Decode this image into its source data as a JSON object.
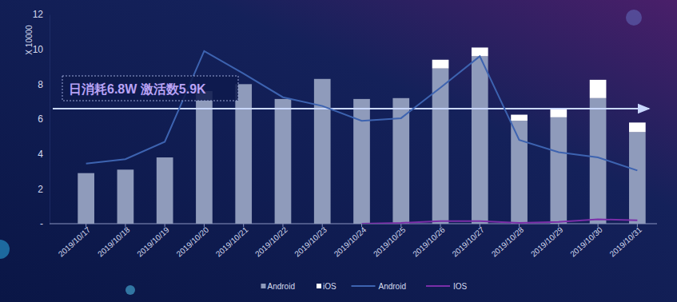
{
  "chart_data": {
    "type": "bar",
    "stacked": true,
    "y_label": "X 10000",
    "annotation": "日消耗6.8W  激活数5.9K",
    "reference_value": 6.6,
    "categories": [
      "2019/10/17",
      "2019/10/18",
      "2019/10/19",
      "2019/10/20",
      "2019/10/21",
      "2019/10/22",
      "2019/10/23",
      "2019/10/24",
      "2019/10/25",
      "2019/10/26",
      "2019/10/27",
      "2019/10/28",
      "2019/10/29",
      "2019/10/30",
      "2019/10/31"
    ],
    "series": [
      {
        "name": "Android",
        "type": "bar",
        "color": "#8f9bbb",
        "values": [
          2.9,
          3.1,
          3.8,
          7.6,
          8.0,
          7.15,
          8.3,
          7.15,
          7.2,
          8.9,
          9.6,
          5.9,
          6.1,
          7.2,
          5.25
        ]
      },
      {
        "name": "iOS",
        "type": "bar",
        "color": "#ffffff",
        "values": [
          0,
          0,
          0,
          0,
          0,
          0,
          0,
          0,
          0,
          0.5,
          0.5,
          0.35,
          0.45,
          1.05,
          0.55
        ]
      },
      {
        "name": "Android",
        "type": "line",
        "color": "#3d63b0",
        "values": [
          3.45,
          3.7,
          4.7,
          9.9,
          8.6,
          7.25,
          6.75,
          5.9,
          6.05,
          7.8,
          9.6,
          4.8,
          4.1,
          3.8,
          3.05
        ]
      },
      {
        "name": "IOS",
        "type": "line",
        "color": "#7a2ea8",
        "values": [
          null,
          null,
          null,
          null,
          null,
          null,
          null,
          0.0,
          0.05,
          0.15,
          0.15,
          0.05,
          0.1,
          0.25,
          0.2
        ]
      }
    ],
    "ylim": [
      0,
      12
    ],
    "yticks": [
      {
        "value": 0,
        "label": "-"
      },
      2,
      4,
      6,
      8,
      10,
      12
    ],
    "grid": false,
    "legend": "bottom"
  }
}
